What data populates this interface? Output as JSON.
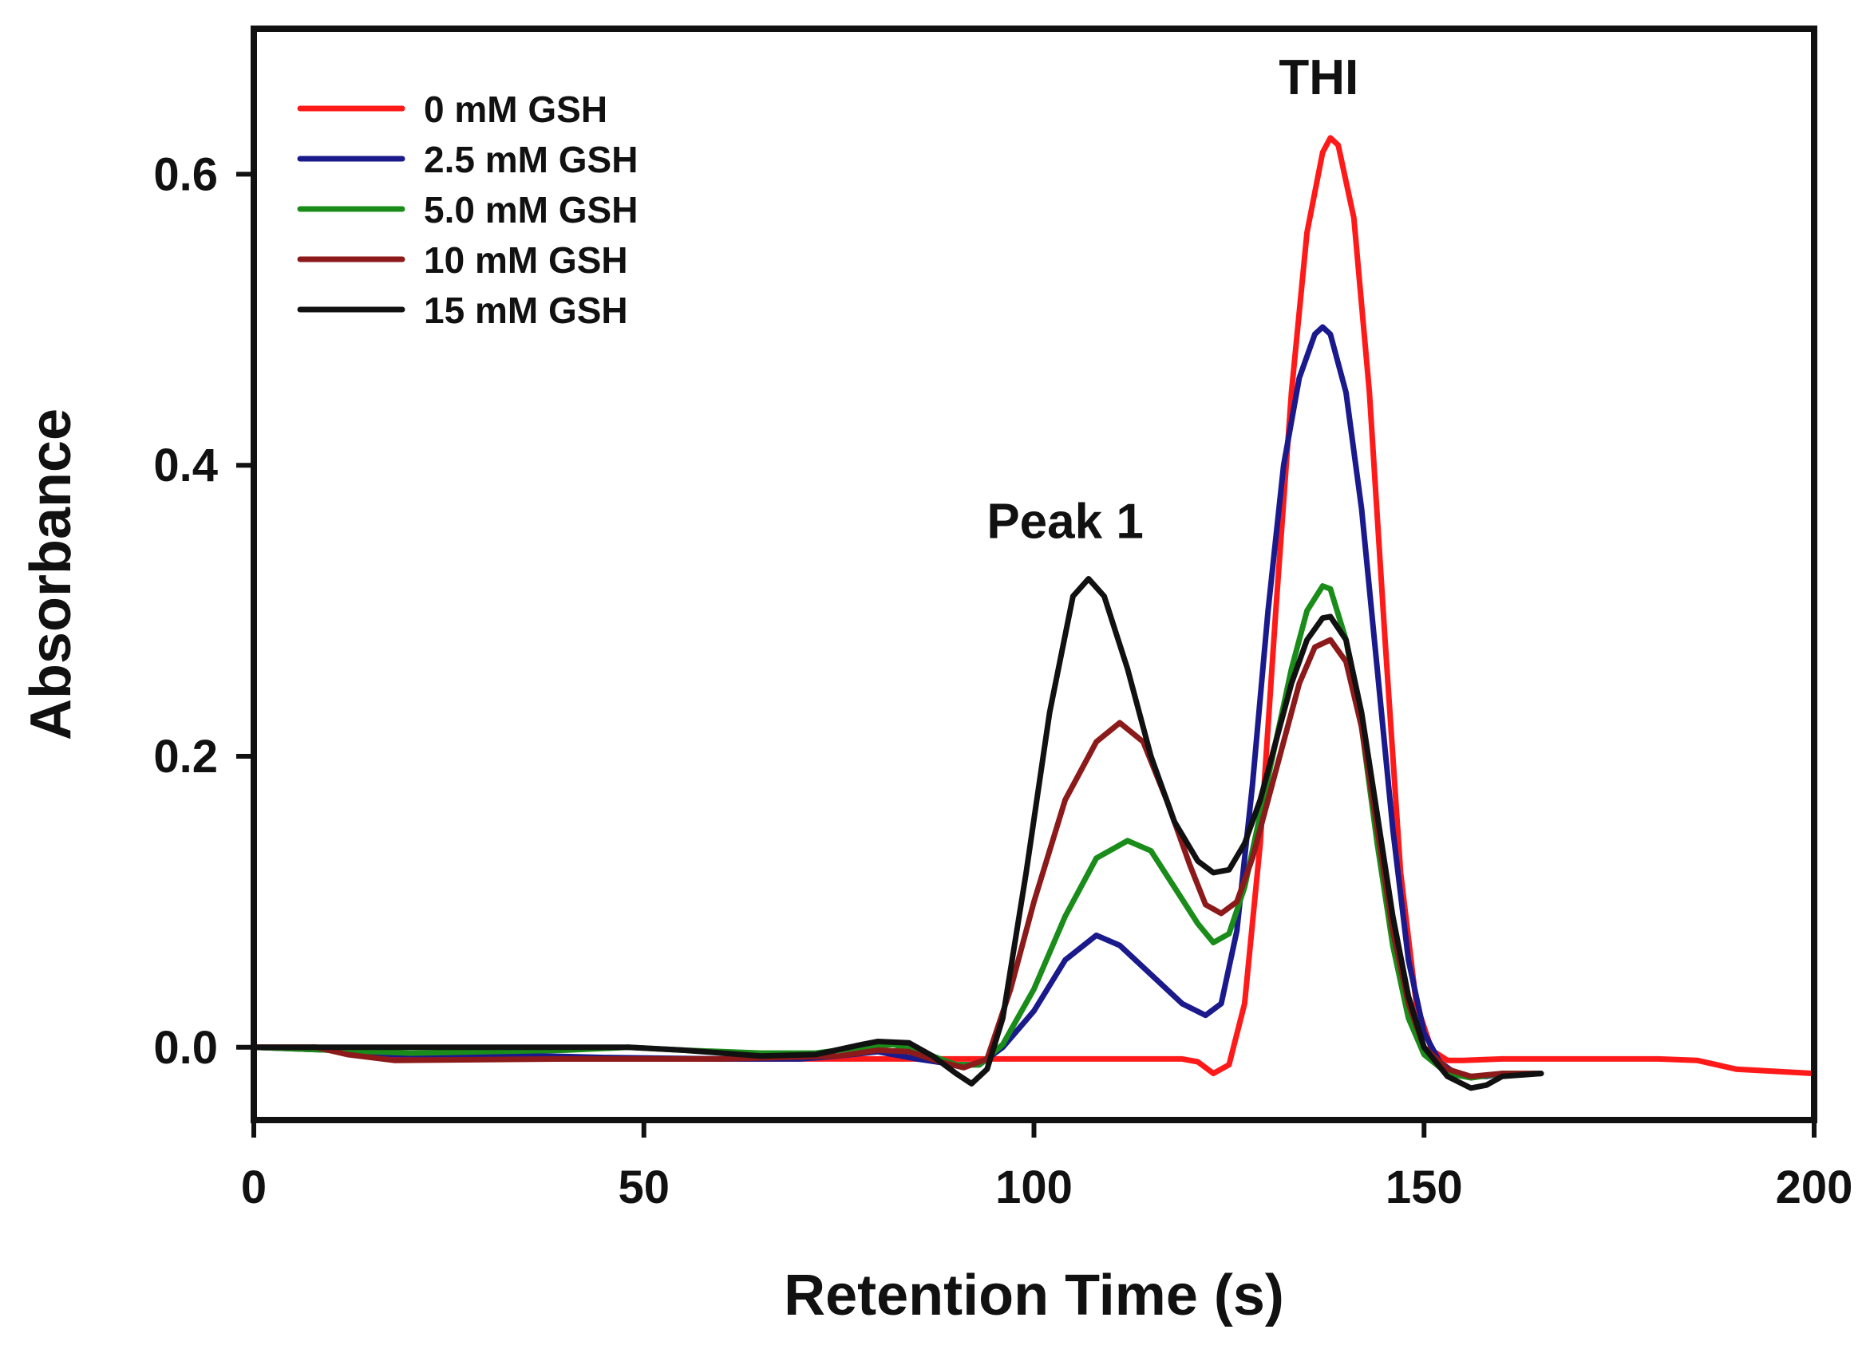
{
  "chart_data": {
    "type": "line",
    "title": "",
    "xlabel": "Retention Time (s)",
    "ylabel": "Absorbance",
    "xlim": [
      0,
      200
    ],
    "ylim": [
      -0.05,
      0.7
    ],
    "xticks": [
      0,
      50,
      100,
      150,
      200
    ],
    "yticks": [
      0.0,
      0.2,
      0.4,
      0.6
    ],
    "xtick_labels": [
      "0",
      "50",
      "100",
      "150",
      "200"
    ],
    "ytick_labels": [
      "0.0",
      "0.2",
      "0.4",
      "0.6"
    ],
    "grid": false,
    "legend_position": "top-left",
    "annotations": [
      {
        "text": "THI",
        "x": 136.5,
        "y": 0.655
      },
      {
        "text": "Peak 1",
        "x": 104,
        "y": 0.35
      }
    ],
    "series": [
      {
        "name": "0 mM GSH",
        "color": "#ff1a1a",
        "points": [
          [
            0,
            0
          ],
          [
            8,
            0
          ],
          [
            12,
            -0.004
          ],
          [
            18,
            -0.008
          ],
          [
            40,
            -0.008
          ],
          [
            60,
            -0.008
          ],
          [
            80,
            -0.008
          ],
          [
            95,
            -0.008
          ],
          [
            110,
            -0.008
          ],
          [
            119,
            -0.008
          ],
          [
            121,
            -0.01
          ],
          [
            123,
            -0.018
          ],
          [
            125,
            -0.012
          ],
          [
            127,
            0.03
          ],
          [
            129,
            0.14
          ],
          [
            131,
            0.3
          ],
          [
            133,
            0.45
          ],
          [
            135,
            0.56
          ],
          [
            137,
            0.615
          ],
          [
            138,
            0.625
          ],
          [
            139,
            0.62
          ],
          [
            141,
            0.57
          ],
          [
            143,
            0.45
          ],
          [
            145,
            0.28
          ],
          [
            147,
            0.12
          ],
          [
            149,
            0.03
          ],
          [
            151,
            -0.002
          ],
          [
            153,
            -0.009
          ],
          [
            155,
            -0.009
          ],
          [
            160,
            -0.008
          ],
          [
            180,
            -0.008
          ],
          [
            185,
            -0.009
          ],
          [
            190,
            -0.015
          ],
          [
            200,
            -0.018
          ]
        ]
      },
      {
        "name": "2.5 mM GSH",
        "color": "#1a1a8c",
        "points": [
          [
            0,
            0
          ],
          [
            10,
            -0.002
          ],
          [
            18,
            -0.005
          ],
          [
            30,
            -0.005
          ],
          [
            45,
            -0.007
          ],
          [
            60,
            -0.008
          ],
          [
            70,
            -0.008
          ],
          [
            75,
            -0.006
          ],
          [
            80,
            -0.003
          ],
          [
            85,
            -0.008
          ],
          [
            90,
            -0.012
          ],
          [
            93,
            -0.012
          ],
          [
            96,
            0.0
          ],
          [
            100,
            0.025
          ],
          [
            104,
            0.06
          ],
          [
            108,
            0.077
          ],
          [
            111,
            0.07
          ],
          [
            115,
            0.05
          ],
          [
            119,
            0.03
          ],
          [
            122,
            0.022
          ],
          [
            124,
            0.03
          ],
          [
            126,
            0.08
          ],
          [
            128,
            0.18
          ],
          [
            130,
            0.3
          ],
          [
            132,
            0.4
          ],
          [
            134,
            0.46
          ],
          [
            136,
            0.49
          ],
          [
            137,
            0.495
          ],
          [
            138,
            0.49
          ],
          [
            140,
            0.45
          ],
          [
            142,
            0.37
          ],
          [
            144,
            0.26
          ],
          [
            146,
            0.15
          ],
          [
            148,
            0.06
          ],
          [
            150,
            0.01
          ],
          [
            152,
            -0.01
          ],
          [
            154,
            -0.018
          ],
          [
            156,
            -0.02
          ],
          [
            158,
            -0.02
          ],
          [
            160,
            -0.018
          ],
          [
            165,
            -0.018
          ]
        ]
      },
      {
        "name": "5.0 mM GSH",
        "color": "#1a8c1a",
        "points": [
          [
            0,
            0
          ],
          [
            10,
            -0.002
          ],
          [
            20,
            -0.004
          ],
          [
            40,
            -0.002
          ],
          [
            48,
            0.0
          ],
          [
            55,
            -0.002
          ],
          [
            65,
            -0.004
          ],
          [
            72,
            -0.004
          ],
          [
            78,
            0.0
          ],
          [
            82,
            0.002
          ],
          [
            86,
            -0.004
          ],
          [
            90,
            -0.012
          ],
          [
            93,
            -0.012
          ],
          [
            96,
            0.002
          ],
          [
            100,
            0.04
          ],
          [
            104,
            0.09
          ],
          [
            108,
            0.13
          ],
          [
            112,
            0.142
          ],
          [
            115,
            0.135
          ],
          [
            118,
            0.11
          ],
          [
            121,
            0.085
          ],
          [
            123,
            0.072
          ],
          [
            125,
            0.078
          ],
          [
            127,
            0.11
          ],
          [
            129,
            0.16
          ],
          [
            131,
            0.21
          ],
          [
            133,
            0.26
          ],
          [
            135,
            0.3
          ],
          [
            137,
            0.317
          ],
          [
            138,
            0.315
          ],
          [
            140,
            0.28
          ],
          [
            142,
            0.22
          ],
          [
            144,
            0.14
          ],
          [
            146,
            0.07
          ],
          [
            148,
            0.02
          ],
          [
            150,
            -0.005
          ],
          [
            153,
            -0.018
          ],
          [
            156,
            -0.021
          ],
          [
            160,
            -0.018
          ],
          [
            165,
            -0.018
          ]
        ]
      },
      {
        "name": "10 mM GSH",
        "color": "#8c1a1a",
        "points": [
          [
            0,
            0
          ],
          [
            8,
            0
          ],
          [
            12,
            -0.005
          ],
          [
            18,
            -0.009
          ],
          [
            40,
            -0.008
          ],
          [
            60,
            -0.008
          ],
          [
            75,
            -0.006
          ],
          [
            80,
            -0.002
          ],
          [
            84,
            -0.003
          ],
          [
            88,
            -0.01
          ],
          [
            91,
            -0.014
          ],
          [
            94,
            -0.008
          ],
          [
            97,
            0.04
          ],
          [
            100,
            0.1
          ],
          [
            104,
            0.17
          ],
          [
            108,
            0.21
          ],
          [
            111,
            0.223
          ],
          [
            114,
            0.21
          ],
          [
            117,
            0.17
          ],
          [
            120,
            0.125
          ],
          [
            122,
            0.098
          ],
          [
            124,
            0.092
          ],
          [
            126,
            0.1
          ],
          [
            128,
            0.13
          ],
          [
            130,
            0.17
          ],
          [
            132,
            0.21
          ],
          [
            134,
            0.25
          ],
          [
            136,
            0.275
          ],
          [
            138,
            0.28
          ],
          [
            140,
            0.265
          ],
          [
            142,
            0.22
          ],
          [
            144,
            0.15
          ],
          [
            146,
            0.08
          ],
          [
            148,
            0.03
          ],
          [
            150,
            0.0
          ],
          [
            153,
            -0.015
          ],
          [
            156,
            -0.02
          ],
          [
            160,
            -0.018
          ],
          [
            165,
            -0.018
          ]
        ]
      },
      {
        "name": "15 mM GSH",
        "color": "#111111",
        "points": [
          [
            0,
            0
          ],
          [
            10,
            0
          ],
          [
            20,
            0
          ],
          [
            30,
            0
          ],
          [
            40,
            0
          ],
          [
            48,
            0.0
          ],
          [
            55,
            -0.002
          ],
          [
            65,
            -0.006
          ],
          [
            72,
            -0.005
          ],
          [
            78,
            0.002
          ],
          [
            80,
            0.004
          ],
          [
            84,
            0.003
          ],
          [
            87,
            -0.006
          ],
          [
            90,
            -0.018
          ],
          [
            92,
            -0.025
          ],
          [
            94,
            -0.015
          ],
          [
            96,
            0.02
          ],
          [
            99,
            0.12
          ],
          [
            102,
            0.23
          ],
          [
            105,
            0.31
          ],
          [
            107,
            0.322
          ],
          [
            109,
            0.31
          ],
          [
            112,
            0.26
          ],
          [
            115,
            0.2
          ],
          [
            118,
            0.155
          ],
          [
            121,
            0.128
          ],
          [
            123,
            0.12
          ],
          [
            125,
            0.122
          ],
          [
            127,
            0.14
          ],
          [
            129,
            0.17
          ],
          [
            131,
            0.21
          ],
          [
            133,
            0.25
          ],
          [
            135,
            0.28
          ],
          [
            137,
            0.295
          ],
          [
            138,
            0.296
          ],
          [
            140,
            0.28
          ],
          [
            142,
            0.23
          ],
          [
            144,
            0.16
          ],
          [
            146,
            0.09
          ],
          [
            148,
            0.035
          ],
          [
            150,
            0.0
          ],
          [
            153,
            -0.02
          ],
          [
            156,
            -0.028
          ],
          [
            158,
            -0.026
          ],
          [
            160,
            -0.02
          ],
          [
            165,
            -0.018
          ]
        ]
      }
    ]
  }
}
